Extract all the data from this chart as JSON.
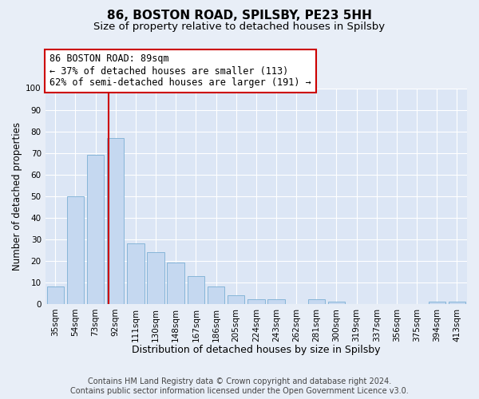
{
  "title": "86, BOSTON ROAD, SPILSBY, PE23 5HH",
  "subtitle": "Size of property relative to detached houses in Spilsby",
  "xlabel": "Distribution of detached houses by size in Spilsby",
  "ylabel": "Number of detached properties",
  "footer_line1": "Contains HM Land Registry data © Crown copyright and database right 2024.",
  "footer_line2": "Contains public sector information licensed under the Open Government Licence v3.0.",
  "categories": [
    "35sqm",
    "54sqm",
    "73sqm",
    "92sqm",
    "111sqm",
    "130sqm",
    "148sqm",
    "167sqm",
    "186sqm",
    "205sqm",
    "224sqm",
    "243sqm",
    "262sqm",
    "281sqm",
    "300sqm",
    "319sqm",
    "337sqm",
    "356sqm",
    "375sqm",
    "394sqm",
    "413sqm"
  ],
  "values": [
    8,
    50,
    69,
    77,
    28,
    24,
    19,
    13,
    8,
    4,
    2,
    2,
    0,
    2,
    1,
    0,
    0,
    0,
    0,
    1,
    1
  ],
  "bar_color": "#c5d8f0",
  "bar_edge_color": "#7bafd4",
  "vline_x_index": 3,
  "vline_color": "#cc0000",
  "annotation_line1": "86 BOSTON ROAD: 89sqm",
  "annotation_line2": "← 37% of detached houses are smaller (113)",
  "annotation_line3": "62% of semi-detached houses are larger (191) →",
  "annotation_fontsize": 8.5,
  "ylim": [
    0,
    100
  ],
  "yticks": [
    0,
    10,
    20,
    30,
    40,
    50,
    60,
    70,
    80,
    90,
    100
  ],
  "bg_color": "#e8eef7",
  "plot_bg_color": "#dce6f5",
  "title_fontsize": 11,
  "subtitle_fontsize": 9.5,
  "xlabel_fontsize": 9,
  "ylabel_fontsize": 8.5,
  "tick_fontsize": 7.5,
  "footer_fontsize": 7
}
